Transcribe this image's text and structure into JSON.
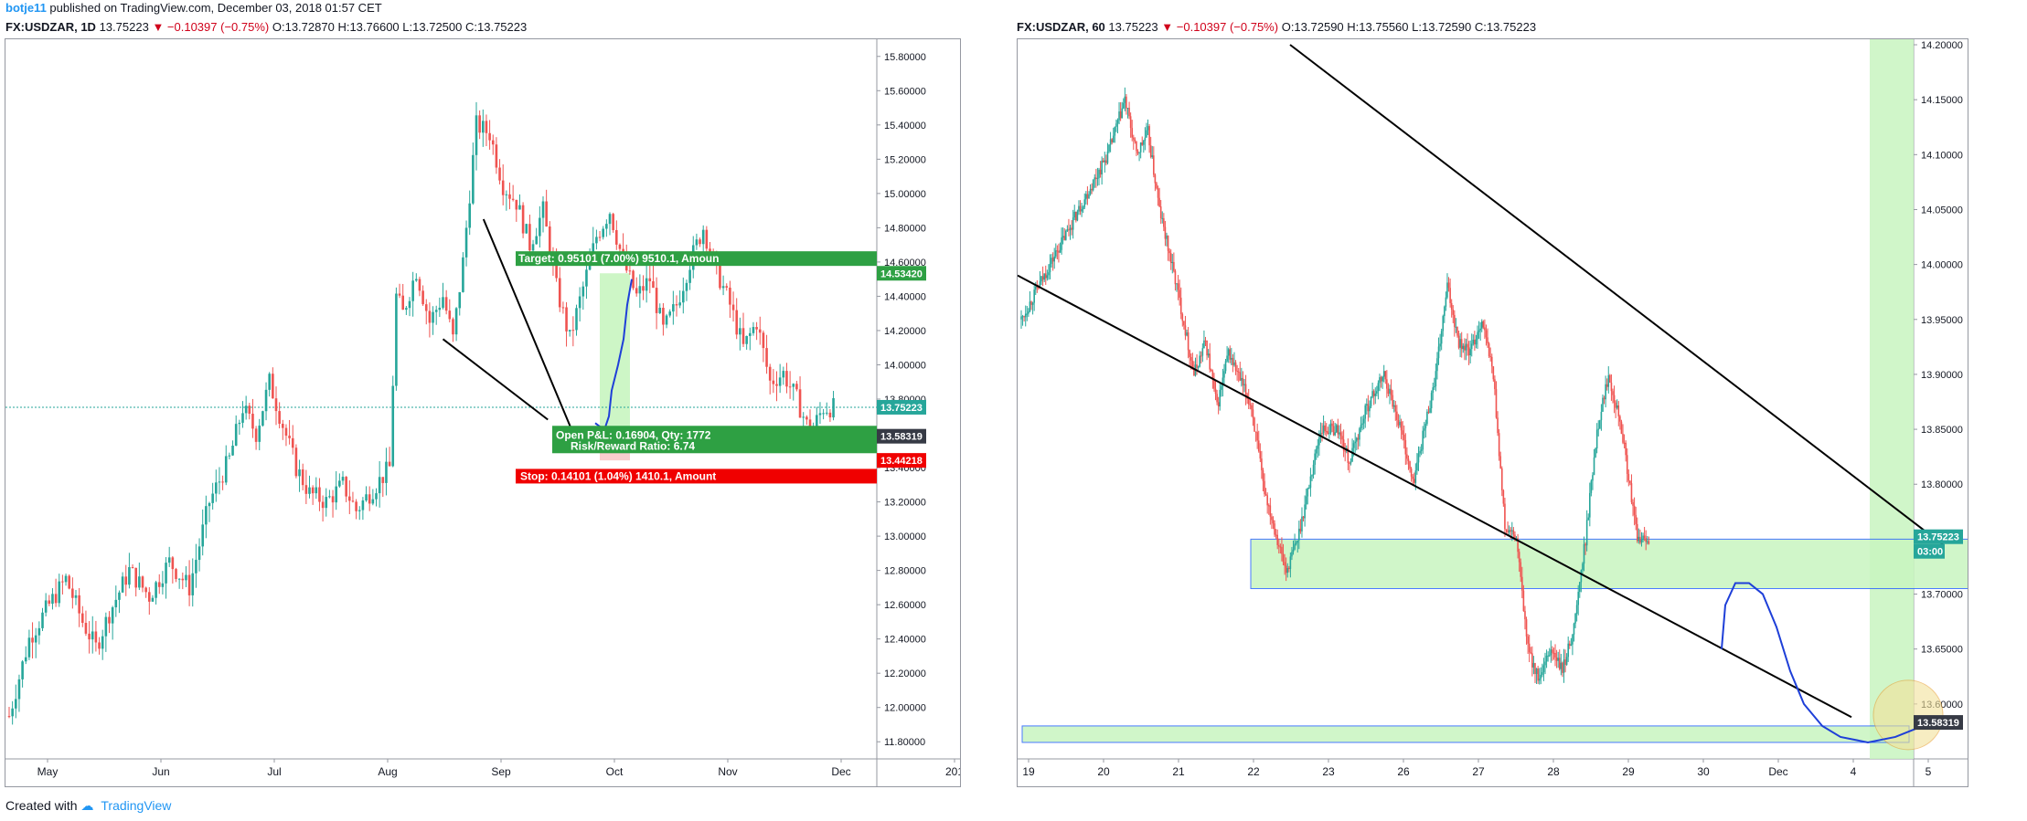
{
  "header": {
    "author": "botje11",
    "published": "published on TradingView.com, December 03, 2018 01:57 CET"
  },
  "left_legend": {
    "symbol": "FX:USDZAR, 1D",
    "price": "13.75223",
    "change": "▼ −0.10397 (−0.75%)",
    "o": "O:13.72870",
    "h": "H:13.76600",
    "l": "L:13.72500",
    "c": "C:13.75223"
  },
  "right_legend": {
    "symbol": "FX:USDZAR, 60",
    "price": "13.75223",
    "change": "▼ −0.10397 (−0.75%)",
    "o": "O:13.72590",
    "h": "H:13.75560",
    "l": "L:13.72590",
    "c": "C:13.75223"
  },
  "footer": {
    "created": "Created with",
    "brand": "TradingView"
  },
  "colors": {
    "up": "#26a69a",
    "down": "#ef5350",
    "target": "#2ea043",
    "stop": "#f00000",
    "trendline": "#000000",
    "projection": "#1e3fd8",
    "zone": "#c8f5c0"
  },
  "chart_data": [
    {
      "type": "candlestick",
      "symbol": "FX:USDZAR",
      "timeframe": "1D",
      "x_tick_labels": [
        "May",
        "Jun",
        "Jul",
        "Aug",
        "Sep",
        "Oct",
        "Nov",
        "Dec",
        "201"
      ],
      "y_tick_labels": [
        "11.80000",
        "12.00000",
        "12.20000",
        "12.40000",
        "12.60000",
        "12.80000",
        "13.00000",
        "13.20000",
        "13.40000",
        "13.60000",
        "13.80000",
        "14.00000",
        "14.20000",
        "14.40000",
        "14.60000",
        "14.80000",
        "15.00000",
        "15.20000",
        "15.40000",
        "15.60000",
        "15.80000"
      ],
      "ylim": [
        11.7,
        15.9
      ],
      "price_path": [
        [
          0,
          11.95
        ],
        [
          6,
          12.4
        ],
        [
          12,
          12.6
        ],
        [
          17,
          12.75
        ],
        [
          22,
          12.5
        ],
        [
          26,
          12.35
        ],
        [
          30,
          12.55
        ],
        [
          36,
          12.8
        ],
        [
          42,
          12.65
        ],
        [
          48,
          12.85
        ],
        [
          54,
          12.7
        ],
        [
          60,
          13.2
        ],
        [
          66,
          13.45
        ],
        [
          70,
          13.75
        ],
        [
          74,
          13.6
        ],
        [
          78,
          13.9
        ],
        [
          82,
          13.65
        ],
        [
          86,
          13.4
        ],
        [
          90,
          13.25
        ],
        [
          95,
          13.2
        ],
        [
          100,
          13.3
        ],
        [
          104,
          13.15
        ],
        [
          110,
          13.3
        ],
        [
          114,
          13.4
        ],
        [
          116,
          14.4
        ],
        [
          118,
          14.3
        ],
        [
          122,
          14.55
        ],
        [
          126,
          14.25
        ],
        [
          130,
          14.4
        ],
        [
          133,
          14.15
        ],
        [
          136,
          14.6
        ],
        [
          140,
          15.4
        ],
        [
          144,
          15.35
        ],
        [
          148,
          15.05
        ],
        [
          152,
          14.95
        ],
        [
          156,
          14.7
        ],
        [
          160,
          14.9
        ],
        [
          164,
          14.45
        ],
        [
          168,
          14.15
        ],
        [
          172,
          14.45
        ],
        [
          176,
          14.75
        ],
        [
          180,
          14.9
        ],
        [
          184,
          14.6
        ],
        [
          188,
          14.4
        ],
        [
          192,
          14.5
        ],
        [
          196,
          14.2
        ],
        [
          200,
          14.35
        ],
        [
          204,
          14.6
        ],
        [
          208,
          14.8
        ],
        [
          212,
          14.55
        ],
        [
          216,
          14.35
        ],
        [
          220,
          14.1
        ],
        [
          224,
          14.25
        ],
        [
          228,
          13.9
        ],
        [
          232,
          13.95
        ],
        [
          236,
          13.8
        ],
        [
          240,
          13.6
        ],
        [
          244,
          13.75
        ],
        [
          247,
          13.75
        ]
      ],
      "trendlines": [
        {
          "from": [
            "2018-10-15",
            14.15
          ],
          "to": [
            "2018-11-28",
            13.68
          ]
        },
        {
          "from": [
            "2018-11-01",
            14.85
          ],
          "to": [
            "2018-12-08",
            13.62
          ]
        }
      ],
      "annotations": {
        "target_label": "Target: 0.95101 (7.00%) 9510.1, Amoun",
        "target_price_tag": "14.53420",
        "current_price_tag": "13.75223",
        "open_pnl_label": "Open P&L: 0.16904, Qty: 1772",
        "rr_label": "Risk/Reward Ratio: 6.74",
        "entry_price_tag": "13.58319",
        "stop_label": "Stop: 0.14101 (1.04%) 1410.1, Amount",
        "stop_price_tag": "13.44218"
      },
      "position": {
        "entry": 13.58319,
        "target": 14.5342,
        "stop": 13.44218
      }
    },
    {
      "type": "candlestick",
      "symbol": "FX:USDZAR",
      "timeframe": "60",
      "x_tick_labels": [
        "19",
        "20",
        "21",
        "22",
        "23",
        "26",
        "27",
        "28",
        "29",
        "30",
        "Dec",
        "4",
        "5"
      ],
      "y_tick_labels": [
        "13.60000",
        "13.65000",
        "13.70000",
        "13.75000",
        "13.80000",
        "13.85000",
        "13.90000",
        "13.95000",
        "14.00000",
        "14.05000",
        "14.10000",
        "14.15000",
        "14.20000"
      ],
      "ylim": [
        13.55,
        14.205
      ],
      "price_path": [
        [
          0,
          13.95
        ],
        [
          5,
          14.0
        ],
        [
          10,
          14.05
        ],
        [
          15,
          14.1
        ],
        [
          18,
          14.15
        ],
        [
          20,
          14.1
        ],
        [
          22,
          14.12
        ],
        [
          24,
          14.05
        ],
        [
          27,
          13.98
        ],
        [
          30,
          13.9
        ],
        [
          32,
          13.93
        ],
        [
          34,
          13.87
        ],
        [
          36,
          13.92
        ],
        [
          40,
          13.87
        ],
        [
          42,
          13.8
        ],
        [
          44,
          13.76
        ],
        [
          46,
          13.72
        ],
        [
          48,
          13.75
        ],
        [
          50,
          13.8
        ],
        [
          52,
          13.85
        ],
        [
          55,
          13.85
        ],
        [
          57,
          13.82
        ],
        [
          60,
          13.87
        ],
        [
          63,
          13.9
        ],
        [
          66,
          13.85
        ],
        [
          68,
          13.8
        ],
        [
          70,
          13.85
        ],
        [
          72,
          13.9
        ],
        [
          74,
          13.98
        ],
        [
          76,
          13.93
        ],
        [
          78,
          13.92
        ],
        [
          80,
          13.95
        ],
        [
          82,
          13.9
        ],
        [
          84,
          13.76
        ],
        [
          86,
          13.75
        ],
        [
          88,
          13.65
        ],
        [
          90,
          13.62
        ],
        [
          92,
          13.65
        ],
        [
          94,
          13.63
        ],
        [
          96,
          13.67
        ],
        [
          98,
          13.75
        ],
        [
          100,
          13.85
        ],
        [
          102,
          13.9
        ],
        [
          104,
          13.86
        ],
        [
          107,
          13.75
        ],
        [
          109,
          13.75
        ]
      ],
      "trendlines": [
        {
          "from": [
            "2018-11-20",
            14.26
          ],
          "to": [
            "2018-12-05",
            13.745
          ]
        },
        {
          "from": [
            "2018-11-19",
            13.99
          ],
          "to": [
            "2018-12-04",
            13.59
          ]
        }
      ],
      "zones": [
        {
          "y_low": 13.705,
          "y_high": 13.75
        },
        {
          "y_low": 13.565,
          "y_high": 13.58
        }
      ],
      "annotations": {
        "current_price_tag": "13.75223",
        "countdown_tag": "03:00",
        "entry_price_tag": "13.58319"
      }
    }
  ]
}
